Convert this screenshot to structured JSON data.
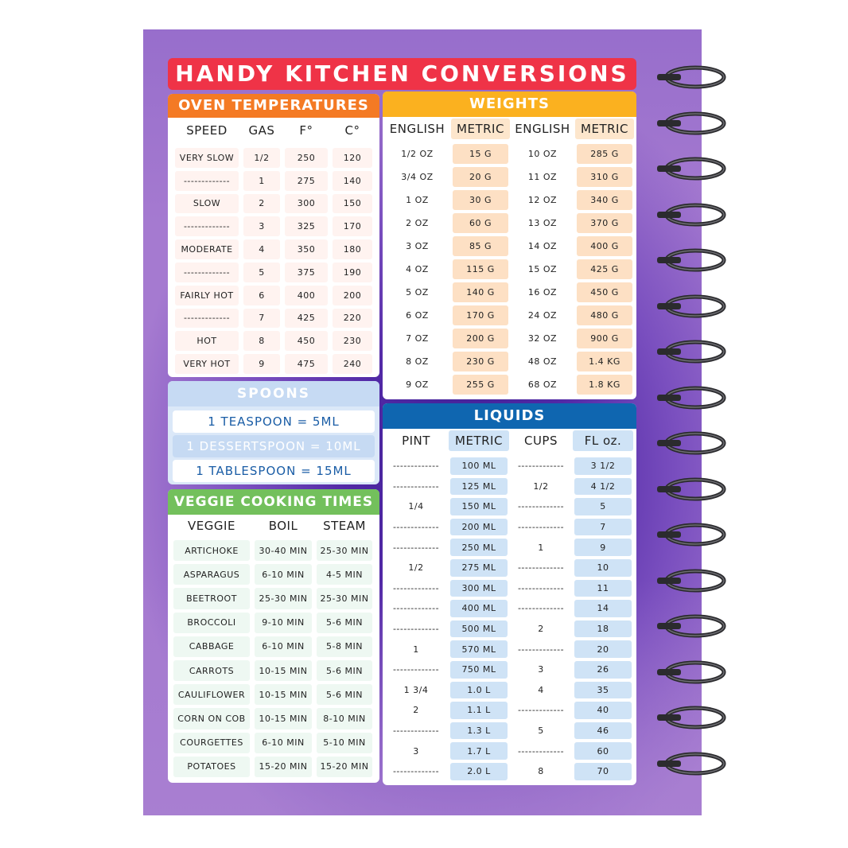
{
  "title": "HANDY KITCHEN CONVERSIONS",
  "colors": {
    "title": "#ef3347",
    "oven": "#f47a24",
    "weights": "#fbb11f",
    "spoons": "#c6daf3",
    "veggie": "#73c05c",
    "liquids": "#0f66b0"
  },
  "oven": {
    "title": "OVEN TEMPERATURES",
    "headers": [
      "SPEED",
      "GAS",
      "F°",
      "C°"
    ],
    "rows": [
      [
        "VERY SLOW",
        "1/2",
        "250",
        "120"
      ],
      [
        "-------------",
        "1",
        "275",
        "140"
      ],
      [
        "SLOW",
        "2",
        "300",
        "150"
      ],
      [
        "-------------",
        "3",
        "325",
        "170"
      ],
      [
        "MODERATE",
        "4",
        "350",
        "180"
      ],
      [
        "-------------",
        "5",
        "375",
        "190"
      ],
      [
        "FAIRLY HOT",
        "6",
        "400",
        "200"
      ],
      [
        "-------------",
        "7",
        "425",
        "220"
      ],
      [
        "HOT",
        "8",
        "450",
        "230"
      ],
      [
        "VERY HOT",
        "9",
        "475",
        "240"
      ]
    ]
  },
  "weights": {
    "title": "WEIGHTS",
    "headers": [
      "ENGLISH",
      "METRIC",
      "ENGLISH",
      "METRIC"
    ],
    "rows": [
      [
        "1/2 OZ",
        "15 G",
        "10 OZ",
        "285 G"
      ],
      [
        "3/4 OZ",
        "20 G",
        "11 OZ",
        "310 G"
      ],
      [
        "1 OZ",
        "30 G",
        "12 OZ",
        "340 G"
      ],
      [
        "2 OZ",
        "60 G",
        "13 OZ",
        "370 G"
      ],
      [
        "3 OZ",
        "85 G",
        "14 OZ",
        "400 G"
      ],
      [
        "4 OZ",
        "115 G",
        "15 OZ",
        "425 G"
      ],
      [
        "5 OZ",
        "140 G",
        "16 OZ",
        "450 G"
      ],
      [
        "6 OZ",
        "170 G",
        "24 OZ",
        "480 G"
      ],
      [
        "7 OZ",
        "200 G",
        "32 OZ",
        "900 G"
      ],
      [
        "8 OZ",
        "230 G",
        "48 OZ",
        "1.4 KG"
      ],
      [
        "9 OZ",
        "255 G",
        "68 OZ",
        "1.8 KG"
      ]
    ]
  },
  "spoons": {
    "title": "SPOONS",
    "rows": [
      "1 TEASPOON = 5ML",
      "1 DESSERTSPOON = 10ML",
      "1 TABLESPOON = 15ML"
    ]
  },
  "veggie": {
    "title": "VEGGIE COOKING TIMES",
    "headers": [
      "VEGGIE",
      "BOIL",
      "STEAM"
    ],
    "rows": [
      [
        "ARTICHOKE",
        "30-40 MIN",
        "25-30 MIN"
      ],
      [
        "ASPARAGUS",
        "6-10 MIN",
        "4-5 MIN"
      ],
      [
        "BEETROOT",
        "25-30 MIN",
        "25-30 MIN"
      ],
      [
        "BROCCOLI",
        "9-10 MIN",
        "5-6 MIN"
      ],
      [
        "CABBAGE",
        "6-10 MIN",
        "5-8 MIN"
      ],
      [
        "CARROTS",
        "10-15 MIN",
        "5-6 MIN"
      ],
      [
        "CAULIFLOWER",
        "10-15 MIN",
        "5-6 MIN"
      ],
      [
        "CORN ON COB",
        "10-15 MIN",
        "8-10 MIN"
      ],
      [
        "COURGETTES",
        "6-10 MIN",
        "5-10 MIN"
      ],
      [
        "POTATOES",
        "15-20 MIN",
        "15-20 MIN"
      ]
    ]
  },
  "liquids": {
    "title": "LIQUIDS",
    "headers": [
      "PINT",
      "METRIC",
      "CUPS",
      "FL oz."
    ],
    "rows": [
      [
        "-------------",
        "100 ML",
        "-------------",
        "3 1/2"
      ],
      [
        "-------------",
        "125 ML",
        "1/2",
        "4 1/2"
      ],
      [
        "1/4",
        "150 ML",
        "-------------",
        "5"
      ],
      [
        "-------------",
        "200 ML",
        "-------------",
        "7"
      ],
      [
        "-------------",
        "250 ML",
        "1",
        "9"
      ],
      [
        "1/2",
        "275 ML",
        "-------------",
        "10"
      ],
      [
        "-------------",
        "300 ML",
        "-------------",
        "11"
      ],
      [
        "-------------",
        "400 ML",
        "-------------",
        "14"
      ],
      [
        "-------------",
        "500 ML",
        "2",
        "18"
      ],
      [
        "1",
        "570 ML",
        "-------------",
        "20"
      ],
      [
        "-------------",
        "750 ML",
        "3",
        "26"
      ],
      [
        "1 3/4",
        "1.0 L",
        "4",
        "35"
      ],
      [
        "2",
        "1.1 L",
        "-------------",
        "40"
      ],
      [
        "-------------",
        "1.3 L",
        "5",
        "46"
      ],
      [
        "3",
        "1.7 L",
        "-------------",
        "60"
      ],
      [
        "-------------",
        "2.0 L",
        "8",
        "70"
      ]
    ]
  }
}
